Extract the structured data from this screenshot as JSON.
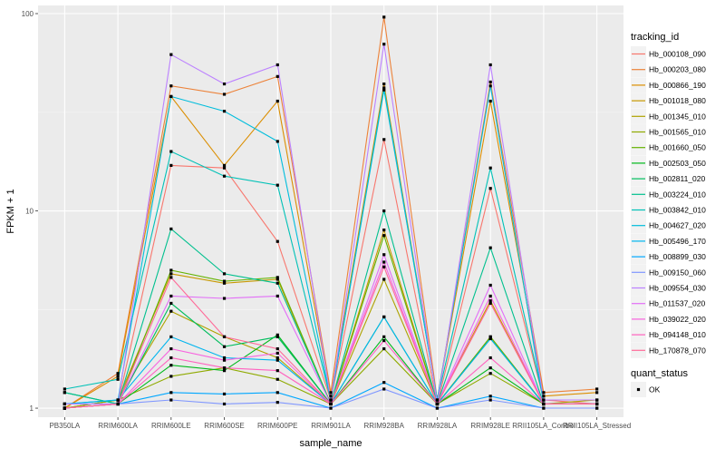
{
  "chart_data": {
    "type": "line",
    "xlabel": "sample_name",
    "ylabel": "FPKM + 1",
    "y_scale": "log10",
    "ylim": [
      0.9,
      110
    ],
    "y_ticks": [
      {
        "value": 1,
        "label": "1"
      },
      {
        "value": 10,
        "label": "10"
      },
      {
        "value": 100,
        "label": "100"
      }
    ],
    "grid": true,
    "legend_position": "right",
    "categories": [
      "PB350LA",
      "RRIM600LA",
      "RRIM600LE",
      "RRIM600SE",
      "RRIM600PE",
      "RRIM901LA",
      "RRIM928BA",
      "RRIM928LA",
      "RRIM928LE",
      "RRII105LA_Control",
      "RRII105LA_Stressed"
    ],
    "legend_title": "tracking_id",
    "series": [
      {
        "name": "Hb_000108_090",
        "color": "#F8766D",
        "values": [
          1.0,
          1.05,
          17.0,
          16.5,
          7.0,
          1.1,
          23.0,
          1.05,
          13.0,
          1.1,
          1.05
        ]
      },
      {
        "name": "Hb_000203_080",
        "color": "#EC8239",
        "values": [
          1.0,
          1.5,
          43.0,
          39.0,
          48.0,
          1.2,
          96.0,
          1.1,
          45.0,
          1.2,
          1.25
        ]
      },
      {
        "name": "Hb_000866_190",
        "color": "#DB8E00",
        "values": [
          1.0,
          1.45,
          38.0,
          17.0,
          36.0,
          1.15,
          44.0,
          1.1,
          36.0,
          1.15,
          1.2
        ]
      },
      {
        "name": "Hb_001018_080",
        "color": "#C79800",
        "values": [
          1.0,
          1.1,
          4.8,
          4.3,
          4.5,
          1.05,
          8.0,
          1.05,
          3.5,
          1.05,
          1.05
        ]
      },
      {
        "name": "Hb_001345_010",
        "color": "#AEA200",
        "values": [
          1.0,
          1.1,
          3.1,
          2.3,
          1.8,
          1.05,
          4.5,
          1.05,
          2.3,
          1.05,
          1.1
        ]
      },
      {
        "name": "Hb_001565_010",
        "color": "#8FAA00",
        "values": [
          1.0,
          1.1,
          1.45,
          1.6,
          1.4,
          1.05,
          2.0,
          1.05,
          1.5,
          1.05,
          1.05
        ]
      },
      {
        "name": "Hb_001660_050",
        "color": "#64B200",
        "values": [
          1.0,
          1.05,
          5.0,
          4.4,
          4.6,
          1.05,
          7.5,
          1.05,
          2.3,
          1.05,
          1.05
        ]
      },
      {
        "name": "Hb_002503_050",
        "color": "#00B81B",
        "values": [
          1.0,
          1.05,
          1.65,
          1.55,
          2.35,
          1.05,
          2.3,
          1.05,
          1.6,
          1.05,
          1.05
        ]
      },
      {
        "name": "Hb_002811_020",
        "color": "#00BD5C",
        "values": [
          1.2,
          1.05,
          3.4,
          2.05,
          2.3,
          1.05,
          2.9,
          1.05,
          2.25,
          1.05,
          1.05
        ]
      },
      {
        "name": "Hb_003224_010",
        "color": "#00C08E",
        "values": [
          1.2,
          1.05,
          8.1,
          4.8,
          4.3,
          1.05,
          10.0,
          1.05,
          6.5,
          1.05,
          1.05
        ]
      },
      {
        "name": "Hb_003842_010",
        "color": "#00C1B7",
        "values": [
          1.25,
          1.4,
          20.0,
          15.0,
          13.5,
          1.1,
          42.0,
          1.1,
          16.5,
          1.1,
          1.1
        ]
      },
      {
        "name": "Hb_004627_020",
        "color": "#00BDDC",
        "values": [
          1.05,
          1.1,
          38.0,
          32.0,
          22.5,
          1.1,
          41.0,
          1.1,
          43.0,
          1.05,
          1.05
        ]
      },
      {
        "name": "Hb_005496_170",
        "color": "#00B5EE",
        "values": [
          1.05,
          1.1,
          2.3,
          1.8,
          1.75,
          1.05,
          2.9,
          1.05,
          2.25,
          1.05,
          1.05
        ]
      },
      {
        "name": "Hb_008899_030",
        "color": "#00A7FF",
        "values": [
          1.05,
          1.05,
          1.2,
          1.18,
          1.2,
          1.0,
          1.35,
          1.0,
          1.15,
          1.0,
          1.0
        ]
      },
      {
        "name": "Hb_009150_060",
        "color": "#7F96FF",
        "values": [
          1.0,
          1.05,
          1.1,
          1.05,
          1.07,
          1.0,
          1.25,
          1.0,
          1.1,
          1.0,
          1.0
        ]
      },
      {
        "name": "Hb_009554_030",
        "color": "#BC81FF",
        "values": [
          1.05,
          1.05,
          62.0,
          44.0,
          55.0,
          1.1,
          70.0,
          1.05,
          55.0,
          1.1,
          1.1
        ]
      },
      {
        "name": "Hb_011537_020",
        "color": "#E26EF7",
        "values": [
          1.0,
          1.05,
          3.7,
          3.6,
          3.7,
          1.05,
          6.0,
          1.05,
          4.2,
          1.05,
          1.05
        ]
      },
      {
        "name": "Hb_039022_020",
        "color": "#F863DF",
        "values": [
          1.0,
          1.05,
          2.0,
          1.75,
          1.9,
          1.05,
          5.5,
          1.05,
          3.7,
          1.05,
          1.05
        ]
      },
      {
        "name": "Hb_094148_010",
        "color": "#FF62BF",
        "values": [
          1.0,
          1.05,
          1.8,
          1.6,
          1.55,
          1.05,
          2.2,
          1.05,
          1.8,
          1.05,
          1.05
        ]
      },
      {
        "name": "Hb_170878_070",
        "color": "#FF6A98",
        "values": [
          1.0,
          1.05,
          4.6,
          2.3,
          2.0,
          1.05,
          5.2,
          1.05,
          3.4,
          1.05,
          1.05
        ]
      }
    ],
    "shape_legend": {
      "title": "quant_status",
      "items": [
        {
          "label": "OK"
        }
      ]
    }
  }
}
